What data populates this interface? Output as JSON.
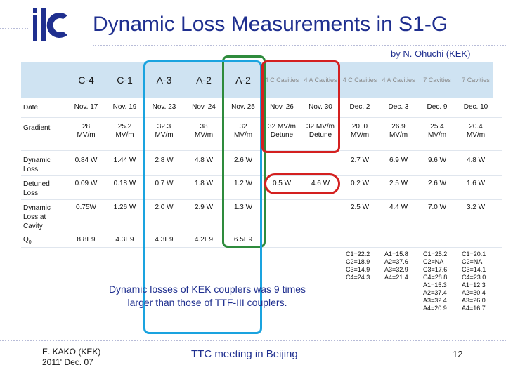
{
  "slide": {
    "title": "Dynamic Loss Measurements in S1-G",
    "byline": "by  N. Ohuchi (KEK)",
    "note_line1": "Dynamic losses of KEK couplers was 9 times",
    "note_line2": "larger than those of TTF-III couplers.",
    "footer_author": "E. KAKO (KEK)",
    "footer_date": "2011' Dec. 07",
    "footer_event": "TTC meeting in Beijing",
    "page_number": "12"
  },
  "logo": {
    "icon": "ilc-logo",
    "color": "#1f2f8f"
  },
  "colors": {
    "title": "#1f2f8f",
    "header_band": "#cfe3f2",
    "box_green": "#2e8b3c",
    "box_blue": "#1aa3df",
    "box_red": "#d42020"
  },
  "table": {
    "headers": [
      "C-4",
      "C-1",
      "A-3",
      "A-2",
      "A-2",
      "4 C Cavities",
      "4 A Cavities",
      "4 C Cavities",
      "4 A Cavities",
      "7 Cavities",
      "7 Cavities"
    ],
    "row_labels": {
      "date": "Date",
      "gradient": "Gradient",
      "dynamic_loss": "Dynamic Loss",
      "detuned_loss": "Detuned Loss",
      "loss_per_cavity": "Dynamic Loss at Cavity",
      "q0": "Q",
      "q0_sub": "0"
    },
    "rows": {
      "date": [
        "Nov. 17",
        "Nov. 19",
        "Nov. 23",
        "Nov. 24",
        "Nov. 25",
        "Nov. 26",
        "Nov. 30",
        "Dec. 2",
        "Dec. 3",
        "Dec. 9",
        "Dec. 10"
      ],
      "gradient": [
        "28 MV/m",
        "25.2 MV/m",
        "32.3 MV/m",
        "38 MV/m",
        "32 MV/m",
        "32 MV/m Detune",
        "32 MV/m Detune",
        "20 .0 MV/m",
        "26.9 MV/m",
        "25.4 MV/m",
        "20.4 MV/m"
      ],
      "dynamic_loss": [
        "0.84 W",
        "1.44 W",
        "2.8 W",
        "4.8 W",
        "2.6 W",
        "",
        "",
        "2.7 W",
        "6.9 W",
        "9.6 W",
        "4.8 W"
      ],
      "detuned_loss": [
        "0.09 W",
        "0.18 W",
        "0.7 W",
        "1.8 W",
        "1.2 W",
        "0.5 W",
        "4.6 W",
        "0.2 W",
        "2.5 W",
        "2.6 W",
        "1.6 W"
      ],
      "loss_per_cavity": [
        "0.75W",
        "1.26 W",
        "2.0 W",
        "2.9 W",
        "1.3 W",
        "",
        "",
        "2.5 W",
        "4.4 W",
        "7.0 W",
        "3.2 W"
      ],
      "q0": [
        "8.8E9",
        "4.3E9",
        "4.3E9",
        "4.2E9",
        "6.5E9",
        "",
        "",
        "",
        "",
        "",
        ""
      ]
    },
    "cavity_gradients": [
      [
        "C1=22.2",
        "C2=18.9",
        "C3=14.9",
        "C4=24.3"
      ],
      [
        "A1=15.8",
        "A2=37.6",
        "A3=32.9",
        "A4=21.4"
      ],
      [
        "C1=25.2",
        "C2=NA",
        "C3=17.6",
        "C4=28.8",
        "A1=15.3",
        "A2=37.4",
        "A3=32.4",
        "A4=20.9"
      ],
      [
        "C1=20.1",
        "C2=NA",
        "C3=14.1",
        "C4=23.0",
        "A1=12.3",
        "A2=30.4",
        "A3=26.0",
        "A4=16.7"
      ]
    ]
  }
}
